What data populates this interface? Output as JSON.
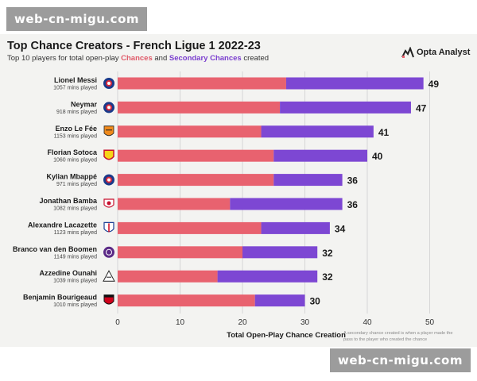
{
  "watermark": {
    "top": "web-cn-migu.com",
    "bottom": "web-cn-migu.com"
  },
  "header": {
    "title": "Top Chance Creators - French Ligue 1 2022-23",
    "subtitle_prefix": "Top 10 players for total open-play ",
    "subtitle_chances": "Chances",
    "subtitle_and": " and ",
    "subtitle_secondary": "Secondary Chances",
    "subtitle_suffix": " created",
    "brand": "Opta Analyst"
  },
  "footnote": "A secondary chance created is when a player made the pass to the player who created the chance",
  "colors": {
    "chances": "#e8626f",
    "secondary": "#7d47d3",
    "grid": "#d6d6d6",
    "text": "#1a1a1a"
  },
  "chart_data": {
    "type": "bar",
    "orientation": "horizontal",
    "stacked": true,
    "title": "Top Chance Creators - French Ligue 1 2022-23",
    "xlabel": "Total Open-Play Chance Creation",
    "ylabel": "",
    "xlim": [
      0,
      52
    ],
    "xticks": [
      0,
      10,
      20,
      30,
      40,
      50
    ],
    "grid": true,
    "categories": [
      "Lionel Messi",
      "Neymar",
      "Enzo Le Fée",
      "Florian Sotoca",
      "Kylian Mbappé",
      "Jonathan Bamba",
      "Alexandre Lacazette",
      "Branco van den Boomen",
      "Azzedine Ounahi",
      "Benjamin Bourigeaud"
    ],
    "sublabels": [
      "1057 mins played",
      "918 mins played",
      "1153 mins played",
      "1060 mins played",
      "971 mins played",
      "1082 mins played",
      "1123 mins played",
      "1149 mins played",
      "1039 mins played",
      "1010 mins played"
    ],
    "club_icons": [
      "psg-crest-icon",
      "psg-crest-icon",
      "lorient-crest-icon",
      "lens-crest-icon",
      "psg-crest-icon",
      "lille-crest-icon",
      "lyon-crest-icon",
      "toulouse-crest-icon",
      "angers-crest-icon",
      "rennes-crest-icon"
    ],
    "series": [
      {
        "name": "Chances",
        "values": [
          27,
          26,
          23,
          25,
          25,
          18,
          23,
          20,
          16,
          22
        ]
      },
      {
        "name": "Secondary Chances",
        "values": [
          22,
          21,
          18,
          15,
          11,
          18,
          11,
          12,
          16,
          8
        ]
      }
    ],
    "totals": [
      49,
      47,
      41,
      40,
      36,
      36,
      34,
      32,
      32,
      30
    ]
  }
}
